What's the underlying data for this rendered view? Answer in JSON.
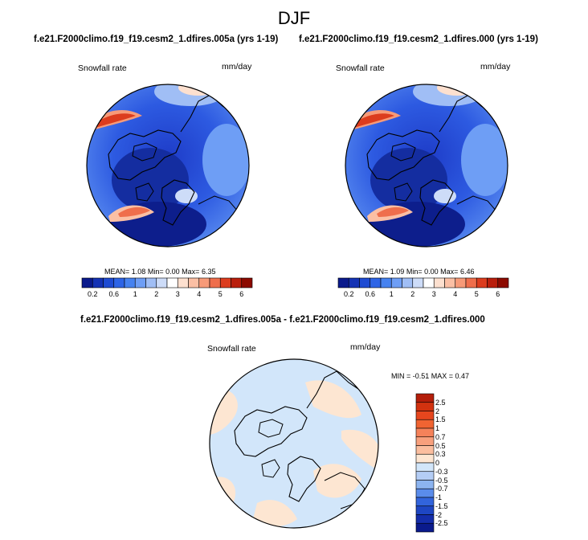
{
  "title": "DJF",
  "panels": [
    {
      "case_title": "f.e21.F2000climo.f19_f19.cesm2_1.dfires.005a (yrs 1-19)",
      "variable": "Snowfall rate",
      "units": "mm/day",
      "mean_label": "MEAN=",
      "mean_value": "1.08",
      "min_label": "Min=",
      "min_value": "0.00",
      "max_label": "Max=",
      "max_value": "6.35"
    },
    {
      "case_title": "f.e21.F2000climo.f19_f19.cesm2_1.dfires.000 (yrs 1-19)",
      "variable": "Snowfall rate",
      "units": "mm/day",
      "mean_label": "MEAN=",
      "mean_value": "1.09",
      "min_label": "Min=",
      "min_value": "0.00",
      "max_label": "Max=",
      "max_value": "6.46"
    }
  ],
  "diff": {
    "case_title": "f.e21.F2000climo.f19_f19.cesm2_1.dfires.005a - f.e21.F2000climo.f19_f19.cesm2_1.dfires.000",
    "variable": "Snowfall rate",
    "units": "mm/day",
    "minmax_text": "MIN = -0.51 MAX =  0.47"
  },
  "chart_data": [
    {
      "type": "heatmap",
      "projection": "polar-stereographic-north",
      "title": "f.e21.F2000climo.f19_f19.cesm2_1.dfires.005a (yrs 1-19)",
      "variable": "Snowfall rate",
      "units": "mm/day",
      "mean": 1.08,
      "min": 0.0,
      "max": 6.35,
      "colorbar_levels": [
        0.2,
        0.4,
        0.6,
        0.8,
        1,
        1.5,
        2,
        2.5,
        3,
        3.5,
        4,
        4.5,
        5,
        5.5,
        6
      ],
      "colorbar_tick_labels": [
        "0.2",
        "0.6",
        "1",
        "2",
        "3",
        "4",
        "5",
        "6"
      ],
      "colorbar_colors": [
        "#0a1a8c",
        "#1432b4",
        "#1e4bd2",
        "#2d64e6",
        "#4682f0",
        "#6e9ef5",
        "#a0bef5",
        "#cddcf8",
        "#ffffff",
        "#fde0cf",
        "#fbbfa4",
        "#f79a78",
        "#ef6e4c",
        "#dc3c1e",
        "#b91e0c",
        "#8c0a00"
      ]
    },
    {
      "type": "heatmap",
      "projection": "polar-stereographic-north",
      "title": "f.e21.F2000climo.f19_f19.cesm2_1.dfires.000 (yrs 1-19)",
      "variable": "Snowfall rate",
      "units": "mm/day",
      "mean": 1.09,
      "min": 0.0,
      "max": 6.46,
      "colorbar_levels": [
        0.2,
        0.4,
        0.6,
        0.8,
        1,
        1.5,
        2,
        2.5,
        3,
        3.5,
        4,
        4.5,
        5,
        5.5,
        6
      ],
      "colorbar_tick_labels": [
        "0.2",
        "0.6",
        "1",
        "2",
        "3",
        "4",
        "5",
        "6"
      ],
      "colorbar_colors": [
        "#0a1a8c",
        "#1432b4",
        "#1e4bd2",
        "#2d64e6",
        "#4682f0",
        "#6e9ef5",
        "#a0bef5",
        "#cddcf8",
        "#ffffff",
        "#fde0cf",
        "#fbbfa4",
        "#f79a78",
        "#ef6e4c",
        "#dc3c1e",
        "#b91e0c",
        "#8c0a00"
      ]
    },
    {
      "type": "heatmap",
      "projection": "polar-stereographic-north",
      "title": "f.e21.F2000climo.f19_f19.cesm2_1.dfires.005a - f.e21.F2000climo.f19_f19.cesm2_1.dfires.000",
      "variable": "Snowfall rate",
      "units": "mm/day",
      "min": -0.51,
      "max": 0.47,
      "colorbar_orientation": "vertical",
      "colorbar_tick_labels": [
        "2.5",
        "2",
        "1.5",
        "1",
        "0.7",
        "0.5",
        "0.3",
        "0",
        "-0.3",
        "-0.5",
        "-0.7",
        "-1",
        "-1.5",
        "-2",
        "-2.5"
      ],
      "colorbar_colors": [
        "#b41e0a",
        "#d2320f",
        "#e6461e",
        "#f06432",
        "#f5825a",
        "#f8a07d",
        "#fbbe9f",
        "#fde6d2",
        "#d2e6fa",
        "#b4cdf5",
        "#8cb4f0",
        "#5a8ceb",
        "#3264dc",
        "#1e46c3",
        "#142daa",
        "#0a1a8c"
      ]
    }
  ]
}
